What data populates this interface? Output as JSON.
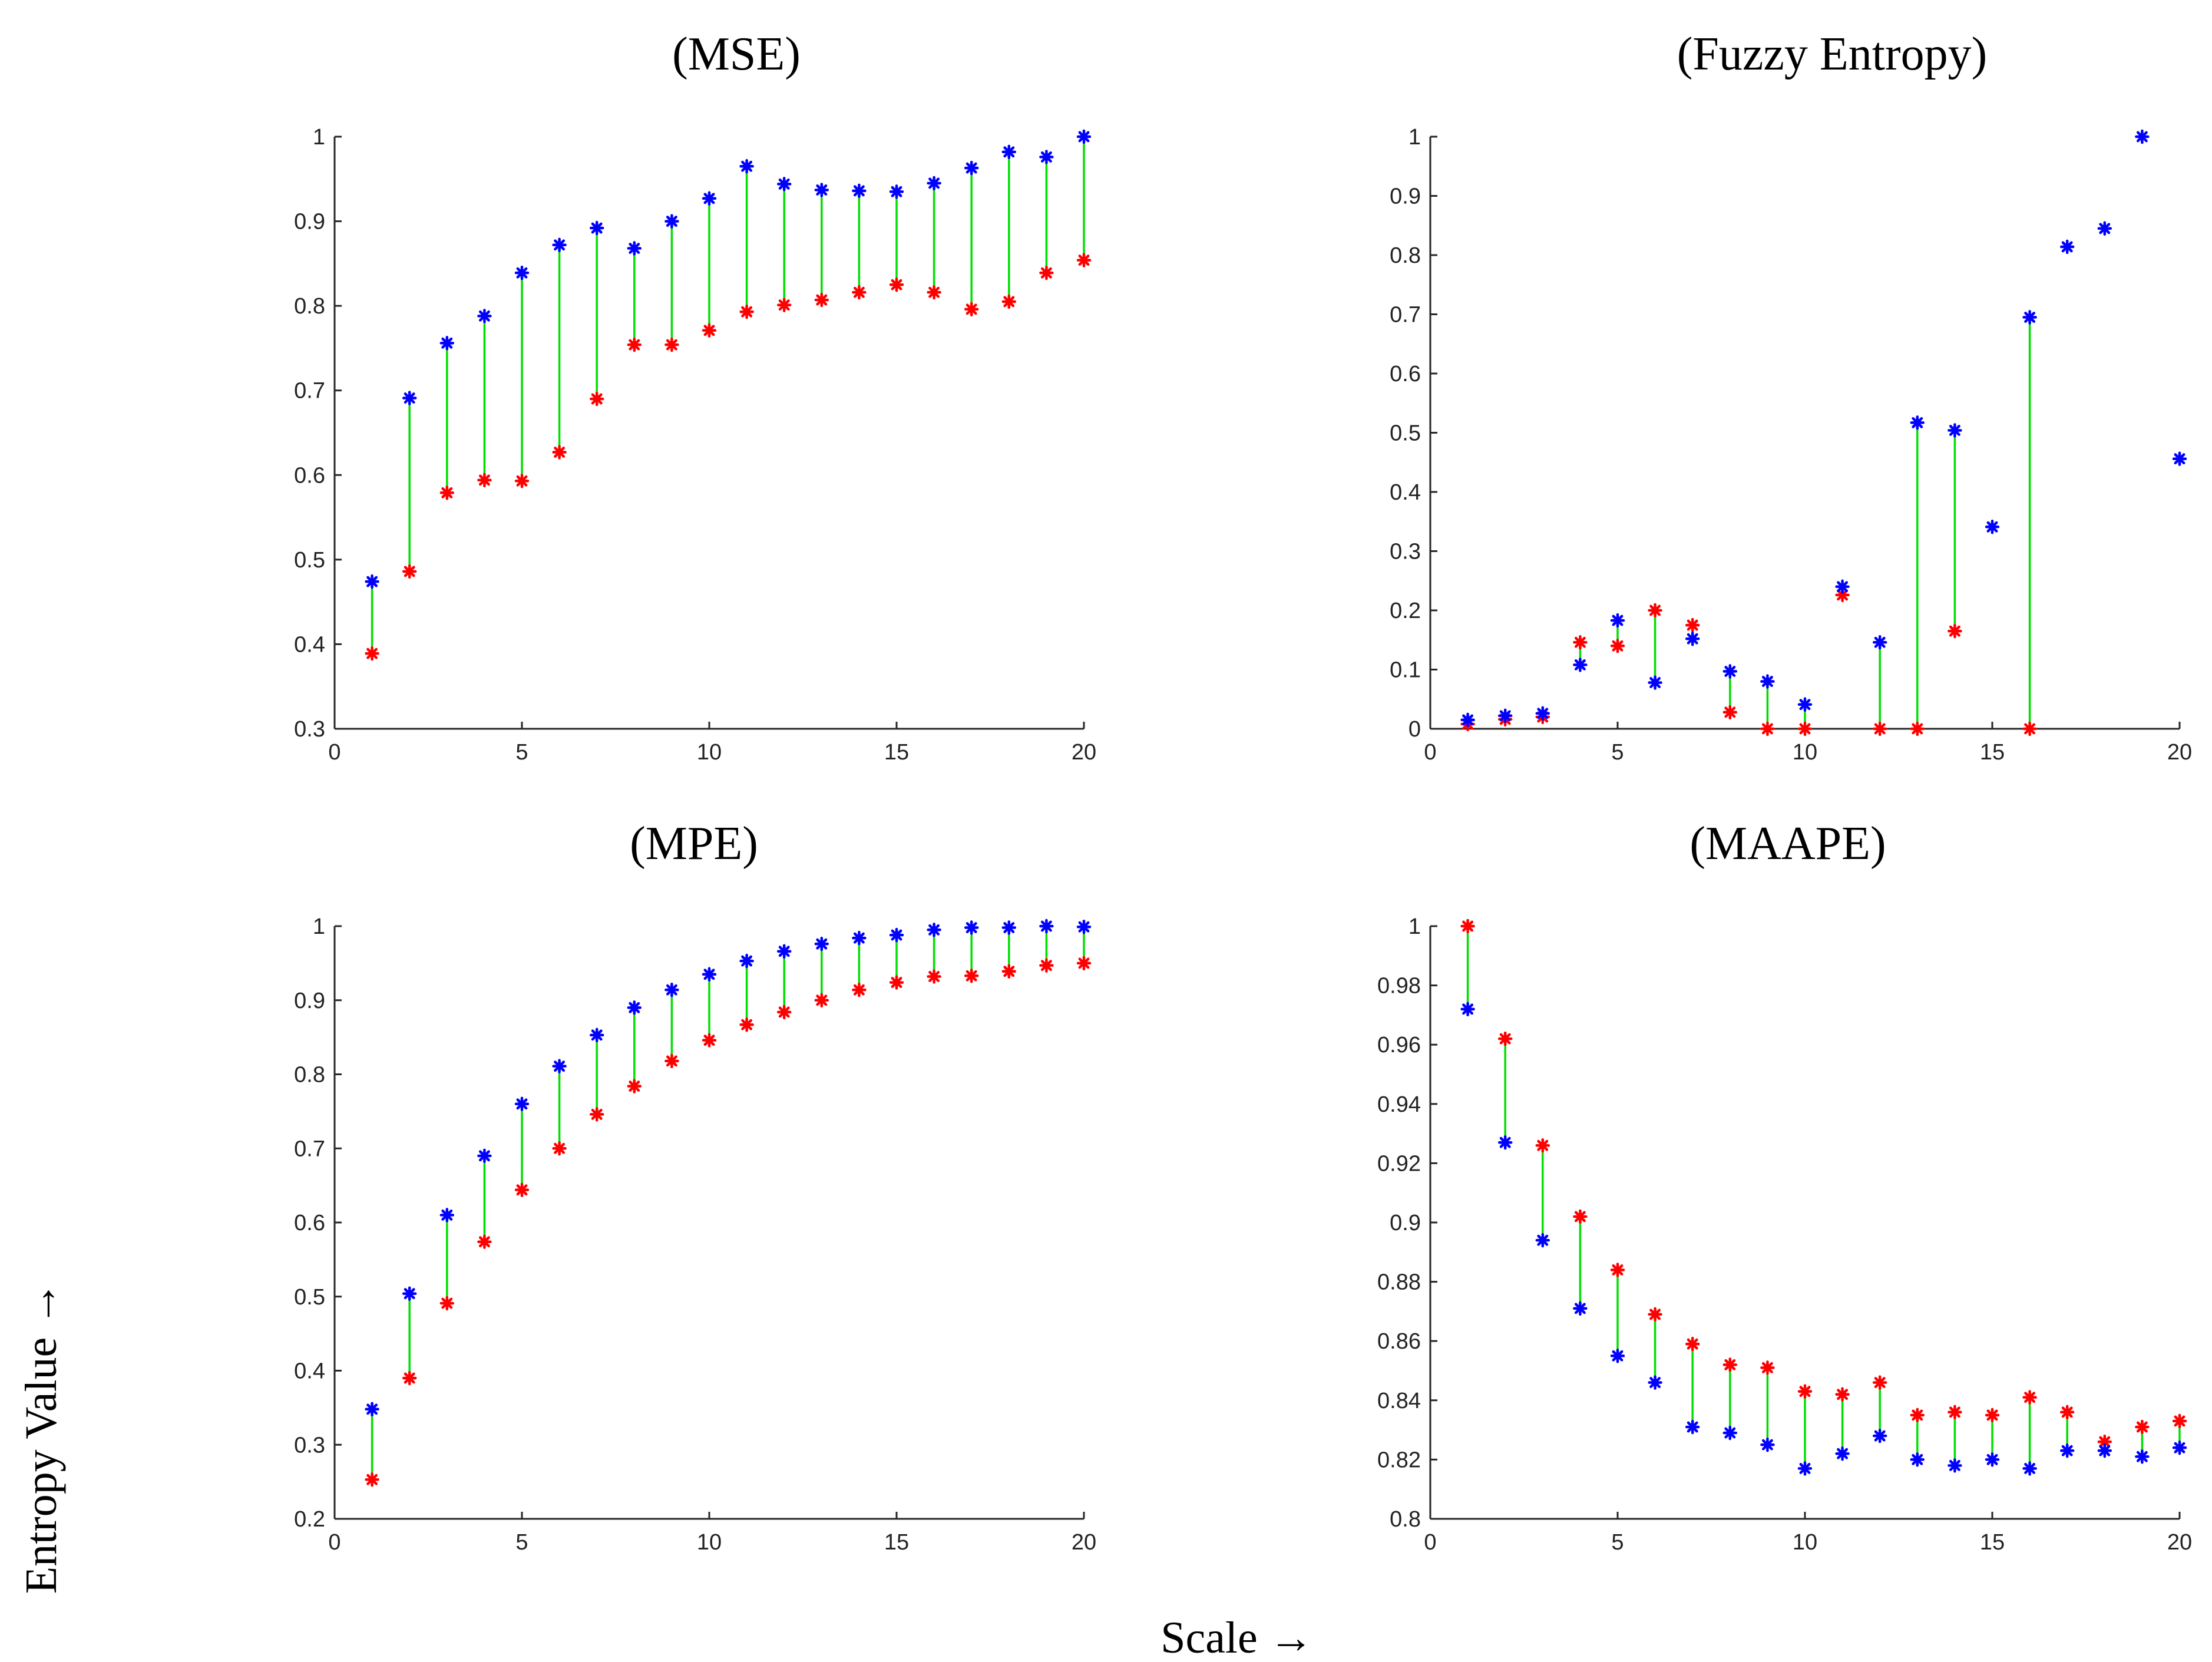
{
  "figure": {
    "xlabel": "Scale →",
    "ylabel": "Entropy Value →"
  },
  "colors": {
    "series_a": "#0000ff",
    "series_b": "#ff0000",
    "stem": "#00e000"
  },
  "chart_data": [
    {
      "id": "mse",
      "type": "scatter",
      "title": "(MSE)",
      "xlim": [
        0,
        20
      ],
      "ylim": [
        0.3,
        1
      ],
      "xticks": [
        0,
        5,
        10,
        15,
        20
      ],
      "xtick_labels": [
        "0",
        "5",
        "10",
        "15",
        "20"
      ],
      "yticks": [
        0.3,
        0.4,
        0.5,
        0.6,
        0.7,
        0.8,
        0.9,
        1
      ],
      "ytick_labels": [
        "0.3",
        "0.4",
        "0.5",
        "0.6",
        "0.7",
        "0.8",
        "0.9",
        "1"
      ],
      "x": [
        1,
        2,
        3,
        4,
        5,
        6,
        7,
        8,
        9,
        10,
        11,
        12,
        13,
        14,
        15,
        16,
        17,
        18,
        19,
        20
      ],
      "series": [
        {
          "name": "blue",
          "color": "#0000ff",
          "values": [
            0.474,
            0.691,
            0.756,
            0.788,
            0.839,
            0.872,
            0.892,
            0.868,
            0.9,
            0.927,
            0.965,
            0.944,
            0.937,
            0.936,
            0.935,
            0.945,
            0.963,
            0.982,
            0.976,
            1.0
          ]
        },
        {
          "name": "red",
          "color": "#ff0000",
          "values": [
            0.389,
            0.486,
            0.579,
            0.594,
            0.593,
            0.627,
            0.69,
            0.754,
            0.754,
            0.771,
            0.793,
            0.801,
            0.807,
            0.816,
            0.825,
            0.816,
            0.796,
            0.805,
            0.839,
            0.854
          ]
        }
      ]
    },
    {
      "id": "fuzzy",
      "type": "scatter",
      "title": "(Fuzzy Entropy)",
      "xlim": [
        0,
        20
      ],
      "ylim": [
        0,
        1
      ],
      "xticks": [
        0,
        5,
        10,
        15,
        20
      ],
      "xtick_labels": [
        "0",
        "5",
        "10",
        "15",
        "20"
      ],
      "yticks": [
        0,
        0.1,
        0.2,
        0.3,
        0.4,
        0.5,
        0.6,
        0.7,
        0.8,
        0.9,
        1
      ],
      "ytick_labels": [
        "0",
        "0.1",
        "0.2",
        "0.3",
        "0.4",
        "0.5",
        "0.6",
        "0.7",
        "0.8",
        "0.9",
        "1"
      ],
      "x": [
        1,
        2,
        3,
        4,
        5,
        6,
        7,
        8,
        9,
        10,
        11,
        12,
        13,
        14,
        15,
        16,
        17,
        18,
        19,
        20
      ],
      "series": [
        {
          "name": "blue",
          "color": "#0000ff",
          "values": [
            0.015,
            0.022,
            0.026,
            0.108,
            0.183,
            0.078,
            0.152,
            0.097,
            0.08,
            0.041,
            0.24,
            0.146,
            0.517,
            0.504,
            0.341,
            0.695,
            0.814,
            0.845,
            1.0,
            0.456
          ]
        },
        {
          "name": "red",
          "color": "#ff0000",
          "values": [
            0.008,
            0.016,
            0.02,
            0.146,
            0.14,
            0.2,
            0.175,
            0.028,
            0.0,
            0.0,
            0.226,
            0.0,
            0.0,
            0.165,
            null,
            0.0,
            null,
            null,
            null,
            null
          ]
        }
      ]
    },
    {
      "id": "mpe",
      "type": "scatter",
      "title": "(MPE)",
      "xlim": [
        0,
        20
      ],
      "ylim": [
        0.2,
        1
      ],
      "xticks": [
        0,
        5,
        10,
        15,
        20
      ],
      "xtick_labels": [
        "0",
        "5",
        "10",
        "15",
        "20"
      ],
      "yticks": [
        0.2,
        0.3,
        0.4,
        0.5,
        0.6,
        0.7,
        0.8,
        0.9,
        1
      ],
      "ytick_labels": [
        "0.2",
        "0.3",
        "0.4",
        "0.5",
        "0.6",
        "0.7",
        "0.8",
        "0.9",
        "1"
      ],
      "x": [
        1,
        2,
        3,
        4,
        5,
        6,
        7,
        8,
        9,
        10,
        11,
        12,
        13,
        14,
        15,
        16,
        17,
        18,
        19,
        20
      ],
      "series": [
        {
          "name": "blue",
          "color": "#0000ff",
          "values": [
            0.348,
            0.504,
            0.61,
            0.69,
            0.76,
            0.811,
            0.853,
            0.89,
            0.914,
            0.935,
            0.953,
            0.966,
            0.976,
            0.984,
            0.988,
            0.995,
            0.998,
            0.998,
            1.0,
            0.999
          ]
        },
        {
          "name": "red",
          "color": "#ff0000",
          "values": [
            0.253,
            0.39,
            0.491,
            0.574,
            0.644,
            0.7,
            0.746,
            0.784,
            0.818,
            0.846,
            0.867,
            0.884,
            0.9,
            0.914,
            0.924,
            0.932,
            0.933,
            0.939,
            0.947,
            0.95
          ]
        }
      ]
    },
    {
      "id": "maape",
      "type": "scatter",
      "title": "(MAAPE)",
      "xlim": [
        0,
        20
      ],
      "ylim": [
        0.8,
        1
      ],
      "xticks": [
        0,
        5,
        10,
        15,
        20
      ],
      "xtick_labels": [
        "0",
        "5",
        "10",
        "15",
        "20"
      ],
      "yticks": [
        0.8,
        0.82,
        0.84,
        0.86,
        0.88,
        0.9,
        0.92,
        0.94,
        0.96,
        0.98,
        1
      ],
      "ytick_labels": [
        "0.8",
        "0.82",
        "0.84",
        "0.86",
        "0.88",
        "0.9",
        "0.92",
        "0.94",
        "0.96",
        "0.98",
        "1"
      ],
      "x": [
        1,
        2,
        3,
        4,
        5,
        6,
        7,
        8,
        9,
        10,
        11,
        12,
        13,
        14,
        15,
        16,
        17,
        18,
        19,
        20
      ],
      "series": [
        {
          "name": "blue",
          "color": "#0000ff",
          "values": [
            0.972,
            0.927,
            0.894,
            0.871,
            0.855,
            0.846,
            0.831,
            0.829,
            0.825,
            0.817,
            0.822,
            0.828,
            0.82,
            0.818,
            0.82,
            0.817,
            0.823,
            0.823,
            0.821,
            0.824
          ]
        },
        {
          "name": "red",
          "color": "#ff0000",
          "values": [
            1.0,
            0.962,
            0.926,
            0.902,
            0.884,
            0.869,
            0.859,
            0.852,
            0.851,
            0.843,
            0.842,
            0.846,
            0.835,
            0.836,
            0.835,
            0.841,
            0.836,
            0.826,
            0.831,
            0.833
          ]
        }
      ]
    }
  ]
}
